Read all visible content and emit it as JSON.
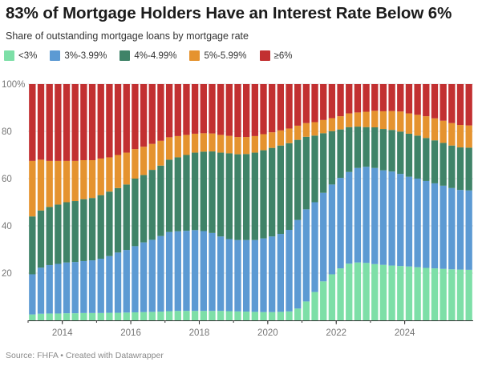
{
  "title": "83% of Mortgage Holders Have an Interest Rate Below 6%",
  "subtitle": "Share of outstanding mortgage loans by mortgage rate",
  "source": "Source: FHFA • Created with Datawrapper",
  "chart_data": {
    "type": "bar",
    "stacked": true,
    "x_start": "2013 Q1",
    "frequency": "quarterly",
    "y_ticks": [
      "100%",
      "80",
      "60",
      "40",
      "20"
    ],
    "x_ticks": [
      "2014",
      "2016",
      "2018",
      "2020",
      "2022",
      "2024"
    ],
    "ylim": [
      0,
      100
    ],
    "grid": true,
    "legend_position": "top-left",
    "series": [
      {
        "name": "<3%",
        "color": "#7ddfa7",
        "values": [
          2.5,
          2.8,
          2.9,
          2.9,
          3.0,
          3.0,
          3.1,
          3.1,
          3.1,
          3.2,
          3.2,
          3.3,
          3.4,
          3.5,
          3.6,
          3.7,
          3.9,
          4.0,
          4.0,
          4.0,
          4.0,
          4.0,
          4.0,
          3.9,
          3.8,
          3.7,
          3.6,
          3.5,
          3.5,
          3.6,
          3.8,
          5.0,
          8.0,
          12.0,
          16.5,
          19.5,
          22.0,
          24.0,
          24.5,
          24.3,
          23.8,
          23.5,
          23.2,
          23.0,
          22.8,
          22.5,
          22.2,
          22.0,
          21.8,
          21.6,
          21.5,
          21.4
        ]
      },
      {
        "name": "3%-3.99%",
        "color": "#5c9ad3",
        "values": [
          17.0,
          19.5,
          20.5,
          21.0,
          21.5,
          21.7,
          22.0,
          22.3,
          23.0,
          24.0,
          25.5,
          26.5,
          28.0,
          29.5,
          30.5,
          32.0,
          33.5,
          33.7,
          33.9,
          34.2,
          33.8,
          33.0,
          31.5,
          30.5,
          30.2,
          30.3,
          30.4,
          31.2,
          32.0,
          33.0,
          34.5,
          37.5,
          39.0,
          38.0,
          37.5,
          38.0,
          38.3,
          38.8,
          40.0,
          40.7,
          40.7,
          40.0,
          39.8,
          39.0,
          38.0,
          37.5,
          36.8,
          36.0,
          35.2,
          34.4,
          33.7,
          33.6
        ]
      },
      {
        "name": "4%-4.99%",
        "color": "#3f8368",
        "values": [
          24.5,
          24.2,
          24.6,
          25.1,
          25.5,
          25.8,
          26.2,
          26.4,
          26.9,
          27.3,
          27.3,
          27.7,
          28.6,
          28.5,
          29.6,
          29.8,
          30.6,
          31.3,
          32.1,
          32.8,
          33.6,
          34.5,
          35.5,
          36.3,
          36.3,
          36.4,
          37.0,
          37.3,
          37.5,
          37.4,
          36.7,
          33.9,
          30.7,
          28.2,
          25.2,
          22.6,
          20.5,
          19.0,
          17.5,
          16.8,
          17.2,
          17.5,
          17.6,
          17.9,
          18.2,
          18.2,
          18.2,
          18.2,
          18.1,
          18.0,
          18.0,
          18.1
        ]
      },
      {
        "name": "5%-5.99%",
        "color": "#e5932f",
        "values": [
          23.5,
          21.5,
          19.5,
          18.5,
          17.5,
          17.0,
          16.5,
          16.0,
          15.5,
          14.5,
          14.0,
          13.5,
          12.5,
          12.0,
          11.0,
          10.5,
          9.5,
          9.0,
          8.5,
          8.0,
          7.8,
          7.6,
          7.5,
          7.4,
          7.3,
          7.2,
          7.0,
          6.8,
          6.6,
          6.4,
          6.2,
          6.0,
          5.8,
          5.7,
          5.6,
          5.5,
          5.6,
          5.8,
          6.0,
          6.5,
          7.0,
          7.5,
          8.0,
          8.5,
          8.6,
          8.8,
          9.2,
          9.3,
          9.4,
          9.5,
          9.5,
          9.4
        ]
      },
      {
        "name": "≥6%",
        "color": "#c23031",
        "values": [
          32.5,
          32.0,
          32.5,
          32.5,
          32.5,
          32.5,
          32.2,
          32.2,
          31.5,
          31.0,
          30.0,
          29.0,
          27.5,
          26.5,
          25.3,
          24.0,
          22.5,
          22.0,
          21.5,
          21.0,
          20.8,
          20.9,
          21.5,
          21.9,
          22.4,
          22.4,
          22.0,
          21.2,
          20.4,
          19.6,
          18.8,
          17.6,
          16.5,
          16.1,
          15.2,
          14.4,
          13.6,
          12.4,
          12.0,
          11.7,
          11.3,
          11.5,
          11.4,
          11.6,
          12.4,
          13.0,
          13.6,
          14.5,
          15.5,
          16.5,
          17.3,
          17.5
        ]
      }
    ]
  }
}
